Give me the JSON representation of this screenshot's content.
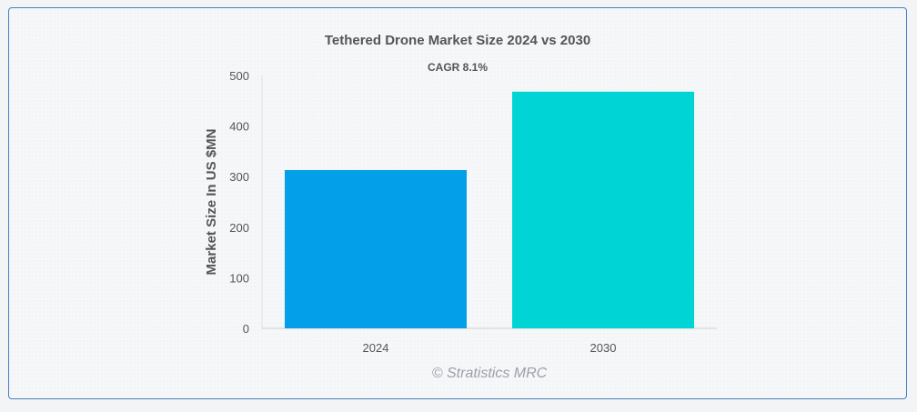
{
  "chart_data": {
    "type": "bar",
    "title": "Tethered Drone Market Size 2024 vs 2030",
    "subtitle": "CAGR 8.1%",
    "categories": [
      "2024",
      "2030"
    ],
    "values": [
      313,
      468
    ],
    "colors": [
      "#039fe9",
      "#01d4d4"
    ],
    "ylabel": "Market Size In US $MN",
    "xlabel": "",
    "ylim": [
      0,
      500
    ],
    "yticks": [
      0,
      100,
      200,
      300,
      400,
      500
    ],
    "grid": false,
    "legend": "none"
  },
  "watermark": "© Stratistics MRC"
}
